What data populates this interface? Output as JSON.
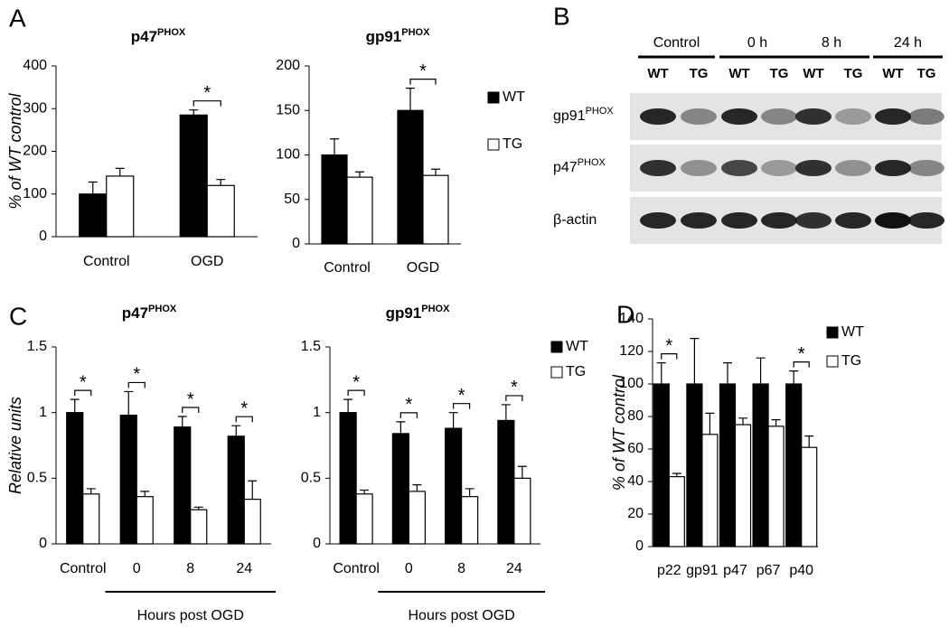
{
  "chart_data": [
    {
      "type": "bar",
      "panel": "A",
      "title": "p47",
      "title_sup": "PHOX",
      "y_label": "% of WT control",
      "categories": [
        "Control",
        "OGD"
      ],
      "series": [
        {
          "color": "#000000",
          "values": [
            100,
            285
          ],
          "errors": [
            28,
            12
          ]
        },
        {
          "color": "#ffffff",
          "values": [
            142,
            120
          ],
          "errors": [
            18,
            14
          ]
        }
      ],
      "stars": [
        null,
        "*"
      ],
      "ylim": [
        0,
        400
      ],
      "yticks": [
        0,
        100,
        200,
        300,
        400
      ]
    },
    {
      "type": "bar",
      "title": "gp91",
      "title_sup": "PHOX",
      "categories": [
        "Control",
        "OGD"
      ],
      "series": [
        {
          "name": "WT",
          "color": "#000000",
          "values": [
            100,
            150
          ],
          "errors": [
            18,
            25
          ]
        },
        {
          "name": "TG",
          "color": "#ffffff",
          "values": [
            75,
            77
          ],
          "errors": [
            6,
            7
          ]
        }
      ],
      "stars": [
        null,
        "*"
      ],
      "ylim": [
        0,
        200
      ],
      "yticks": [
        0,
        50,
        100,
        150,
        200
      ],
      "legend": "right"
    },
    {
      "type": "bar",
      "panel": "C",
      "title": "p47",
      "title_sup": "PHOX",
      "y_label": "Relative units",
      "categories": [
        "Control",
        "0",
        "8",
        "24"
      ],
      "x_group_label": "Hours post OGD",
      "series": [
        {
          "color": "#000000",
          "values": [
            1.0,
            0.98,
            0.89,
            0.82
          ],
          "errors": [
            0.1,
            0.18,
            0.08,
            0.08
          ]
        },
        {
          "color": "#ffffff",
          "values": [
            0.38,
            0.36,
            0.26,
            0.34
          ],
          "errors": [
            0.04,
            0.04,
            0.02,
            0.14
          ]
        }
      ],
      "stars": [
        "*",
        "*",
        "*",
        "*"
      ],
      "ylim": [
        0,
        1.5
      ],
      "yticks": [
        0,
        0.5,
        1,
        1.5
      ]
    },
    {
      "type": "bar",
      "title": "gp91",
      "title_sup": "PHOX",
      "categories": [
        "Control",
        "0",
        "8",
        "24"
      ],
      "x_group_label": "Hours post OGD",
      "series": [
        {
          "name": "WT",
          "color": "#000000",
          "values": [
            1.0,
            0.84,
            0.88,
            0.94
          ],
          "errors": [
            0.1,
            0.09,
            0.12,
            0.12
          ]
        },
        {
          "name": "TG",
          "color": "#ffffff",
          "values": [
            0.38,
            0.4,
            0.36,
            0.5
          ],
          "errors": [
            0.03,
            0.05,
            0.06,
            0.09
          ]
        }
      ],
      "stars": [
        "*",
        "*",
        "*",
        "*"
      ],
      "ylim": [
        0,
        1.5
      ],
      "yticks": [
        0,
        0.5,
        1,
        1.5
      ],
      "legend": "right"
    },
    {
      "type": "bar",
      "panel": "D",
      "y_label": "% of WT control",
      "categories": [
        "p22",
        "gp91",
        "p47",
        "p67",
        "p40"
      ],
      "series": [
        {
          "name": "WT",
          "color": "#000000",
          "values": [
            100,
            100,
            100,
            100,
            100
          ],
          "errors": [
            13,
            28,
            13,
            16,
            8
          ]
        },
        {
          "name": "TG",
          "color": "#ffffff",
          "values": [
            43,
            69,
            75,
            74,
            61
          ],
          "errors": [
            2,
            13,
            4,
            4,
            7
          ]
        }
      ],
      "stars": [
        "*",
        null,
        null,
        null,
        "*"
      ],
      "ylim": [
        0,
        140
      ],
      "yticks": [
        0,
        20,
        40,
        60,
        80,
        100,
        120,
        140
      ],
      "legend": "right"
    }
  ],
  "blot": {
    "panel": "B",
    "groups": [
      "Control",
      "0 h",
      "8 h",
      "24 h"
    ],
    "lanes": [
      "WT",
      "TG",
      "WT",
      "TG",
      "WT",
      "TG",
      "WT",
      "TG"
    ],
    "rows": [
      {
        "label": "gp91",
        "sup": "PHOX"
      },
      {
        "label": "p47",
        "sup": "PHOX"
      },
      {
        "label": "β-actin"
      }
    ]
  }
}
